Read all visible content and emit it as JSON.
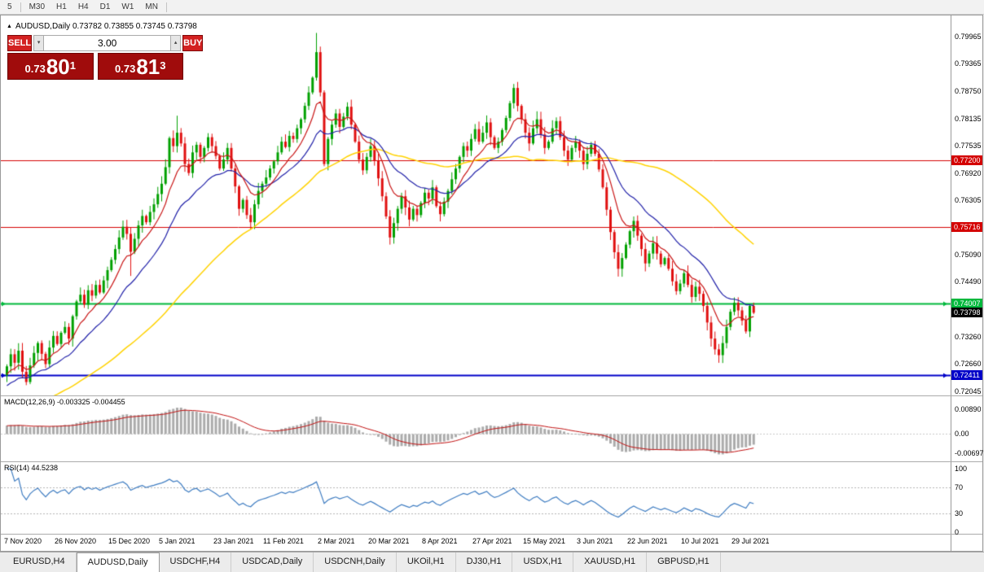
{
  "window": {
    "title_line": "AUDUSD,Daily 0.73782 0.73855 0.73745 0.73798"
  },
  "toolbar": {
    "timeframes": [
      "5",
      "M30",
      "H1",
      "H4",
      "D1",
      "W1",
      "MN"
    ]
  },
  "icons": {
    "panel_toggle": "▲",
    "spin_up": "▴",
    "spin_down": "▾"
  },
  "trade_panel": {
    "sell_label": "SELL",
    "buy_label": "BUY",
    "volume": "3.00",
    "sell_price": {
      "big": "0.73",
      "pips": "80",
      "sup": "1"
    },
    "buy_price": {
      "big": "0.73",
      "pips": "81",
      "sup": "3"
    }
  },
  "tabs": {
    "items": [
      "EURUSD,H4",
      "AUDUSD,Daily",
      "USDCHF,H4",
      "USDCAD,Daily",
      "USDCNH,Daily",
      "UKOil,H1",
      "DJ30,H1",
      "USDX,H1",
      "XAUUSD,H1",
      "GBPUSD,H1"
    ],
    "active_index": 1
  },
  "colors": {
    "up_candle": "#00a000",
    "down_candle": "#e01010",
    "ma_fast": "#c81414",
    "ma_mid": "#2020a8",
    "ma_slow": "#ffd200",
    "macd_hist": "#ababab",
    "macd_signal": "#c01010",
    "rsi_line": "#3e7cc1"
  },
  "chart_data": {
    "type": "candlestick",
    "symbol": "AUDUSD",
    "timeframe": "Daily",
    "ohlc_current": {
      "open": 0.73782,
      "high": 0.73855,
      "low": 0.73745,
      "close": 0.73798
    },
    "price_range": {
      "min": 0.7195,
      "max": 0.8044
    },
    "y_axis_ticks": [
      "0.79965",
      "0.79365",
      "0.78750",
      "0.78135",
      "0.77535",
      "0.76920",
      "0.76305",
      "0.75705",
      "0.75090",
      "0.74490",
      "0.73875",
      "0.73260",
      "0.72660",
      "0.72045"
    ],
    "x_axis_dates": [
      {
        "label": "7 Nov 2020",
        "idx": 0
      },
      {
        "label": "26 Nov 2020",
        "idx": 13
      },
      {
        "label": "15 Dec 2020",
        "idx": 27
      },
      {
        "label": "5 Jan 2021",
        "idx": 40
      },
      {
        "label": "23 Jan 2021",
        "idx": 54
      },
      {
        "label": "11 Feb 2021",
        "idx": 67
      },
      {
        "label": "2 Mar 2021",
        "idx": 81
      },
      {
        "label": "20 Mar 2021",
        "idx": 94
      },
      {
        "label": "8 Apr 2021",
        "idx": 108
      },
      {
        "label": "27 Apr 2021",
        "idx": 121
      },
      {
        "label": "15 May 2021",
        "idx": 134
      },
      {
        "label": "3 Jun 2021",
        "idx": 148
      },
      {
        "label": "22 Jun 2021",
        "idx": 161
      },
      {
        "label": "10 Jul 2021",
        "idx": 175
      },
      {
        "label": "29 Jul 2021",
        "idx": 188
      }
    ],
    "levels": [
      {
        "price": 0.772,
        "label": "0.77200",
        "color": "#d40000",
        "width": 1,
        "arrow": false
      },
      {
        "price": 0.75716,
        "label": "0.75716",
        "color": "#d40000",
        "width": 1,
        "arrow": false
      },
      {
        "price": 0.74007,
        "label": "0.74007",
        "color": "#00b83c",
        "width": 2,
        "arrow": true
      },
      {
        "price": 0.72411,
        "label": "0.72411",
        "color": "#0000c8",
        "width": 2,
        "arrow": true
      }
    ],
    "current_price": {
      "value": 0.73798,
      "label": "0.73798"
    },
    "closes": [
      0.726,
      0.7287,
      0.7268,
      0.7295,
      0.7248,
      0.7225,
      0.7262,
      0.729,
      0.7312,
      0.7288,
      0.7265,
      0.7302,
      0.7328,
      0.731,
      0.7335,
      0.7348,
      0.7322,
      0.7372,
      0.7405,
      0.742,
      0.7398,
      0.743,
      0.7418,
      0.7442,
      0.7425,
      0.7452,
      0.7475,
      0.7498,
      0.7522,
      0.7548,
      0.7572,
      0.7556,
      0.7516,
      0.7545,
      0.7575,
      0.7596,
      0.7582,
      0.7605,
      0.7622,
      0.7645,
      0.7668,
      0.7705,
      0.777,
      0.7752,
      0.7782,
      0.7758,
      0.7712,
      0.7692,
      0.7738,
      0.7755,
      0.7728,
      0.7748,
      0.7772,
      0.7752,
      0.773,
      0.7702,
      0.7722,
      0.7748,
      0.7702,
      0.7662,
      0.7612,
      0.7632,
      0.7598,
      0.7582,
      0.7622,
      0.7652,
      0.7668,
      0.7682,
      0.7702,
      0.7718,
      0.7738,
      0.7762,
      0.775,
      0.7775,
      0.7768,
      0.7792,
      0.7812,
      0.7842,
      0.7872,
      0.7905,
      0.7962,
      0.7872,
      0.7712,
      0.7768,
      0.78,
      0.7825,
      0.7795,
      0.7818,
      0.784,
      0.78,
      0.7762,
      0.7722,
      0.7698,
      0.7728,
      0.7752,
      0.772,
      0.768,
      0.764,
      0.7595,
      0.7548,
      0.758,
      0.7612,
      0.764,
      0.7615,
      0.7588,
      0.7612,
      0.7598,
      0.7625,
      0.7648,
      0.7635,
      0.766,
      0.7618,
      0.76,
      0.7628,
      0.7652,
      0.7678,
      0.7702,
      0.7728,
      0.7752,
      0.7742,
      0.7768,
      0.779,
      0.7762,
      0.7782,
      0.7805,
      0.7772,
      0.7748,
      0.7762,
      0.7788,
      0.7815,
      0.7848,
      0.7882,
      0.7842,
      0.7812,
      0.7782,
      0.7758,
      0.7792,
      0.7812,
      0.7778,
      0.7748,
      0.7762,
      0.7792,
      0.7808,
      0.7772,
      0.7742,
      0.7722,
      0.7748,
      0.7762,
      0.7742,
      0.7712,
      0.7735,
      0.7755,
      0.7735,
      0.77,
      0.766,
      0.761,
      0.756,
      0.7515,
      0.7478,
      0.7502,
      0.7532,
      0.7562,
      0.7585,
      0.7552,
      0.7522,
      0.749,
      0.7512,
      0.7535,
      0.7512,
      0.7488,
      0.7502,
      0.7478,
      0.745,
      0.7428,
      0.7445,
      0.7468,
      0.7442,
      0.7415,
      0.7438,
      0.7422,
      0.7395,
      0.7358,
      0.7322,
      0.7298,
      0.7285,
      0.7312,
      0.7348,
      0.7382,
      0.7402,
      0.7385,
      0.7362,
      0.7338,
      0.7395,
      0.73798
    ],
    "wick_overrides": {
      "0": {
        "open": 0.724
      },
      "5": {
        "low": 0.7218
      },
      "32": {
        "low": 0.7462
      },
      "44": {
        "high": 0.782
      },
      "80": {
        "high": 0.8005
      },
      "88": {
        "high": 0.785
      },
      "99": {
        "low": 0.7532
      },
      "131": {
        "high": 0.7891
      },
      "184": {
        "low": 0.7268
      }
    },
    "warmup": {
      "start": 0.7,
      "bars": 60
    },
    "indicators": {
      "ma_fast_period": 9,
      "ma_mid_period": 21,
      "ma_slow_period": 55,
      "macd": {
        "label": "MACD(12,26,9) -0.003325 -0.004455",
        "fast": 12,
        "slow": 26,
        "signal": 9,
        "scale_labels": [
          {
            "v": 0.0089,
            "label": "0.00890"
          },
          {
            "v": 0,
            "label": "0.00"
          },
          {
            "v": -0.00697,
            "label": "-0.00697"
          }
        ]
      },
      "rsi": {
        "label": "RSI(14) 44.5238",
        "period": 14,
        "dotted_levels": [
          70,
          30
        ],
        "scale_labels": [
          {
            "v": 100,
            "label": "100"
          },
          {
            "v": 70,
            "label": "70"
          },
          {
            "v": 30,
            "label": "30"
          },
          {
            "v": 0,
            "label": "0"
          }
        ]
      }
    }
  }
}
